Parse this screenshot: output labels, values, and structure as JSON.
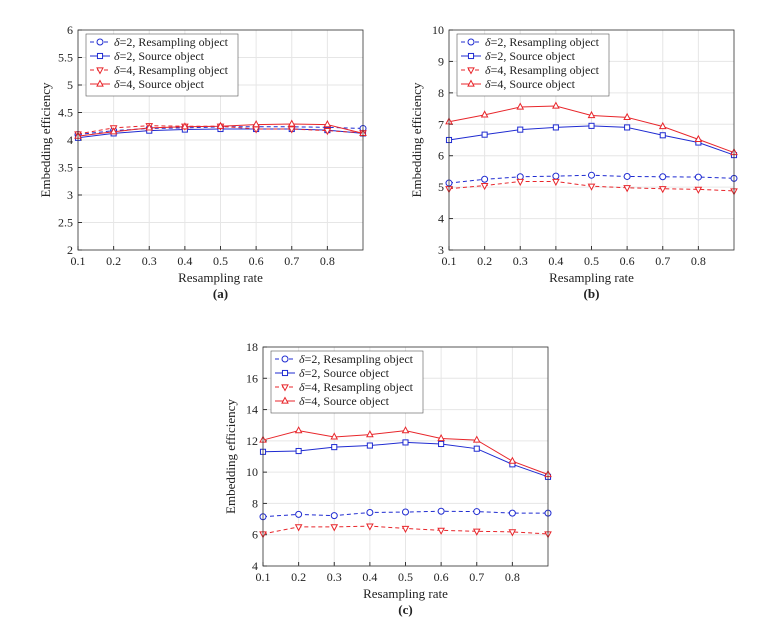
{
  "colors": {
    "blue": "#1f2bd1",
    "red": "#e8262b",
    "grid": "#e6e6e6",
    "axis": "#333333"
  },
  "chart_data": [
    {
      "type": "line",
      "caption": "(a)",
      "xlabel": "Resampling rate",
      "ylabel": "Embedding efficiency",
      "xlim": [
        0.1,
        0.9
      ],
      "ylim": [
        2,
        6
      ],
      "xticks": [
        "0.1",
        "0.2",
        "0.3",
        "0.4",
        "0.5",
        "0.6",
        "0.7",
        "0.8"
      ],
      "yticks": [
        "2",
        "2.5",
        "3",
        "3.5",
        "4",
        "4.5",
        "5",
        "5.5",
        "6"
      ],
      "x": [
        0.1,
        0.2,
        0.3,
        0.4,
        0.5,
        0.6,
        0.7,
        0.8,
        0.9
      ],
      "series": [
        {
          "name": "δ=2, Resampling object",
          "prefix": "δ",
          "rest": "=2, Resampling object",
          "color": "blue",
          "dash": true,
          "marker": "circle",
          "values": [
            4.1,
            4.17,
            4.21,
            4.22,
            4.24,
            4.24,
            4.24,
            4.23,
            4.21
          ]
        },
        {
          "name": "δ=2, Source object",
          "prefix": "δ",
          "rest": "=2, Source object",
          "color": "blue",
          "dash": false,
          "marker": "square",
          "values": [
            4.04,
            4.12,
            4.17,
            4.19,
            4.2,
            4.2,
            4.2,
            4.18,
            4.12
          ]
        },
        {
          "name": "δ=4, Resampling object",
          "prefix": "δ",
          "rest": "=4, Resampling object",
          "color": "red",
          "dash": true,
          "marker": "tri-down",
          "values": [
            4.11,
            4.22,
            4.26,
            4.25,
            4.25,
            4.2,
            4.2,
            4.17,
            4.13
          ]
        },
        {
          "name": "δ=4, Source object",
          "prefix": "δ",
          "rest": "=4, Source object",
          "color": "red",
          "dash": false,
          "marker": "tri-up",
          "values": [
            4.07,
            4.15,
            4.22,
            4.24,
            4.25,
            4.28,
            4.29,
            4.28,
            4.12
          ]
        }
      ]
    },
    {
      "type": "line",
      "caption": "(b)",
      "xlabel": "Resampling rate",
      "ylabel": "Embedding efficiency",
      "xlim": [
        0.1,
        0.9
      ],
      "ylim": [
        3,
        10
      ],
      "xticks": [
        "0.1",
        "0.2",
        "0.3",
        "0.4",
        "0.5",
        "0.6",
        "0.7",
        "0.8"
      ],
      "yticks": [
        "3",
        "4",
        "5",
        "6",
        "7",
        "8",
        "9",
        "10"
      ],
      "x": [
        0.1,
        0.2,
        0.3,
        0.4,
        0.5,
        0.6,
        0.7,
        0.8,
        0.9
      ],
      "series": [
        {
          "name": "δ=2, Resampling object",
          "prefix": "δ",
          "rest": "=2, Resampling object",
          "color": "blue",
          "dash": true,
          "marker": "circle",
          "values": [
            5.13,
            5.25,
            5.33,
            5.35,
            5.38,
            5.34,
            5.33,
            5.32,
            5.28
          ]
        },
        {
          "name": "δ=2, Source object",
          "prefix": "δ",
          "rest": "=2, Source object",
          "color": "blue",
          "dash": false,
          "marker": "square",
          "values": [
            6.5,
            6.67,
            6.83,
            6.9,
            6.95,
            6.9,
            6.65,
            6.42,
            6.02
          ]
        },
        {
          "name": "δ=4, Resampling object",
          "prefix": "δ",
          "rest": "=4, Resampling object",
          "color": "red",
          "dash": true,
          "marker": "tri-down",
          "values": [
            4.95,
            5.05,
            5.18,
            5.18,
            5.03,
            4.98,
            4.95,
            4.93,
            4.88
          ]
        },
        {
          "name": "δ=4, Source object",
          "prefix": "δ",
          "rest": "=4, Source object",
          "color": "red",
          "dash": false,
          "marker": "tri-up",
          "values": [
            7.08,
            7.3,
            7.55,
            7.58,
            7.28,
            7.22,
            6.93,
            6.52,
            6.1
          ]
        }
      ]
    },
    {
      "type": "line",
      "caption": "(c)",
      "xlabel": "Resampling rate",
      "ylabel": "Embedding efficiency",
      "xlim": [
        0.1,
        0.9
      ],
      "ylim": [
        4,
        18
      ],
      "xticks": [
        "0.1",
        "0.2",
        "0.3",
        "0.4",
        "0.5",
        "0.6",
        "0.7",
        "0.8"
      ],
      "yticks": [
        "4",
        "6",
        "8",
        "10",
        "12",
        "14",
        "16",
        "18"
      ],
      "x": [
        0.1,
        0.2,
        0.3,
        0.4,
        0.5,
        0.6,
        0.7,
        0.8,
        0.9
      ],
      "series": [
        {
          "name": "δ=2, Resampling object",
          "prefix": "δ",
          "rest": "=2, Resampling object",
          "color": "blue",
          "dash": true,
          "marker": "circle",
          "values": [
            7.15,
            7.3,
            7.22,
            7.42,
            7.45,
            7.5,
            7.48,
            7.38,
            7.38
          ]
        },
        {
          "name": "δ=2, Source object",
          "prefix": "δ",
          "rest": "=2, Source object",
          "color": "blue",
          "dash": false,
          "marker": "square",
          "values": [
            11.3,
            11.35,
            11.6,
            11.7,
            11.9,
            11.8,
            11.5,
            10.5,
            9.7
          ]
        },
        {
          "name": "δ=4, Resampling object",
          "prefix": "δ",
          "rest": "=4, Resampling object",
          "color": "red",
          "dash": true,
          "marker": "tri-down",
          "values": [
            6.05,
            6.5,
            6.5,
            6.55,
            6.4,
            6.28,
            6.22,
            6.18,
            6.05
          ]
        },
        {
          "name": "δ=4, Source object",
          "prefix": "δ",
          "rest": "=4, Source object",
          "color": "red",
          "dash": false,
          "marker": "tri-up",
          "values": [
            12.05,
            12.65,
            12.25,
            12.4,
            12.65,
            12.15,
            12.05,
            10.7,
            9.85
          ]
        }
      ]
    }
  ]
}
